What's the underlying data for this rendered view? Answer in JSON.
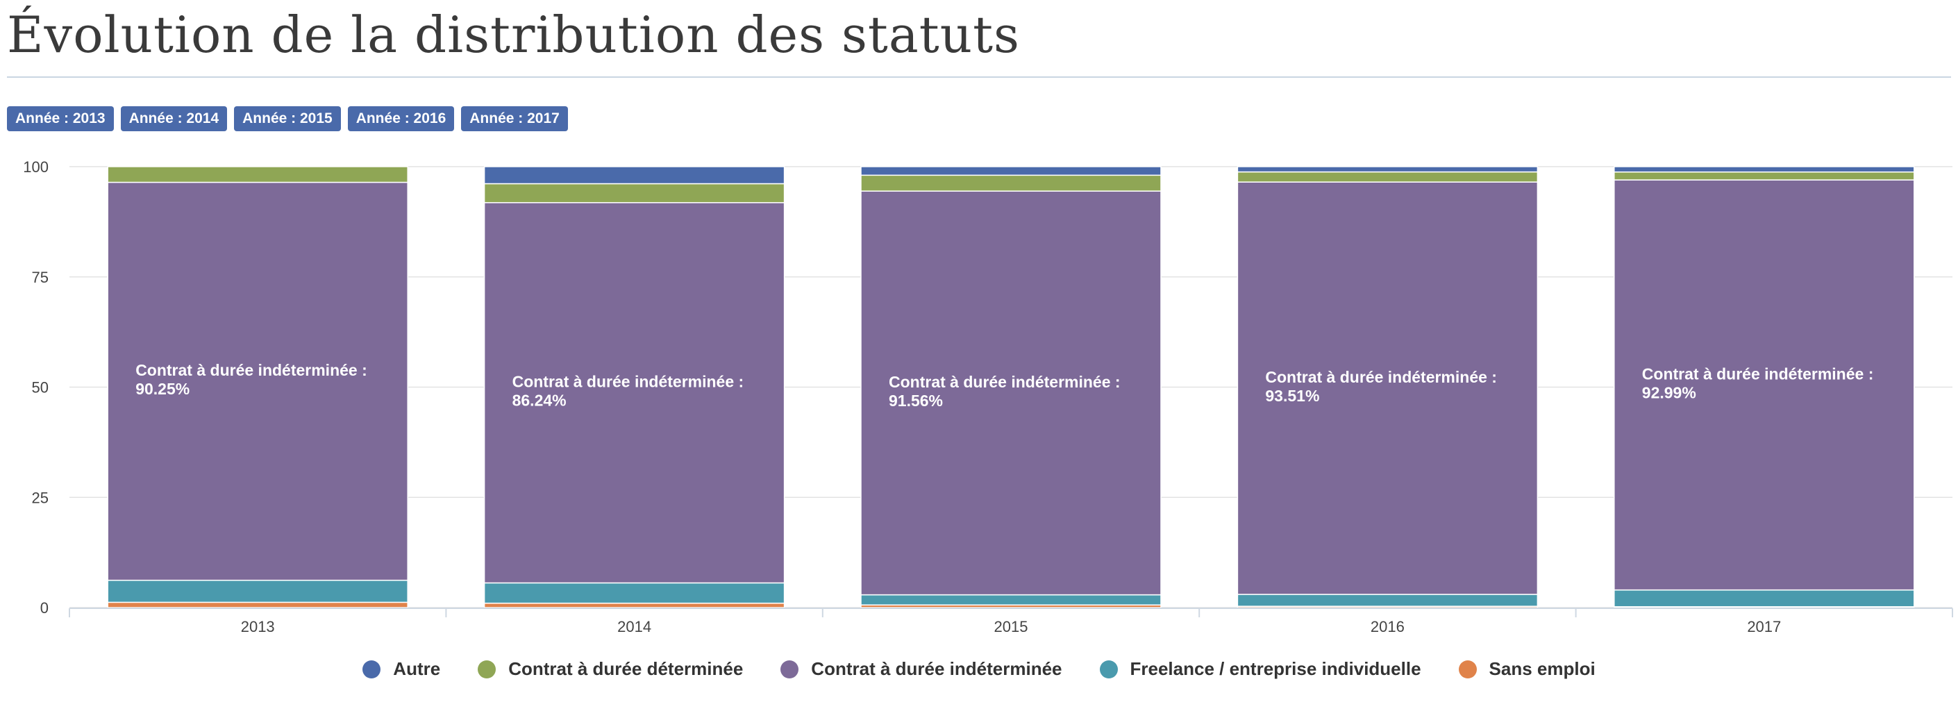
{
  "title": "Évolution de la distribution des statuts",
  "filters": [
    "Année : 2013",
    "Année : 2014",
    "Année : 2015",
    "Année : 2016",
    "Année : 2017"
  ],
  "colors": {
    "Autre": "#4a6aaa",
    "Contrat à durée déterminée": "#8fa655",
    "Contrat à durée indéterminée": "#7d6a98",
    "Freelance / entreprise individuelle": "#4a9aad",
    "Sans emploi": "#e0834a"
  },
  "chart_data": {
    "type": "bar",
    "stacked": true,
    "categories": [
      "2013",
      "2014",
      "2015",
      "2016",
      "2017"
    ],
    "yticks": [
      0,
      25,
      50,
      75,
      100
    ],
    "ylim": [
      0,
      100
    ],
    "series": [
      {
        "name": "Sans emploi",
        "values": [
          1.2,
          1.0,
          0.6,
          0.3,
          0.2
        ]
      },
      {
        "name": "Freelance / entreprise individuelle",
        "values": [
          5.0,
          4.6,
          2.3,
          2.7,
          3.8
        ]
      },
      {
        "name": "Contrat à durée indéterminée",
        "values": [
          90.25,
          86.24,
          91.56,
          93.51,
          92.99
        ]
      },
      {
        "name": "Contrat à durée déterminée",
        "values": [
          3.55,
          4.3,
          3.6,
          2.3,
          1.8
        ]
      },
      {
        "name": "Autre",
        "values": [
          0,
          3.86,
          1.94,
          1.19,
          1.21
        ]
      }
    ],
    "data_labels": [
      {
        "line1": "Contrat à durée indéterminée :",
        "line2": "90.25%"
      },
      {
        "line1": "Contrat à durée indéterminée :",
        "line2": "86.24%"
      },
      {
        "line1": "Contrat à durée indéterminée :",
        "line2": "91.56%"
      },
      {
        "line1": "Contrat à durée indéterminée :",
        "line2": "93.51%"
      },
      {
        "line1": "Contrat à durée indéterminée :",
        "line2": "92.99%"
      }
    ],
    "legend": [
      "Autre",
      "Contrat à durée déterminée",
      "Contrat à durée indéterminée",
      "Freelance / entreprise individuelle",
      "Sans emploi"
    ],
    "legend_position": "bottom",
    "grid": true
  }
}
